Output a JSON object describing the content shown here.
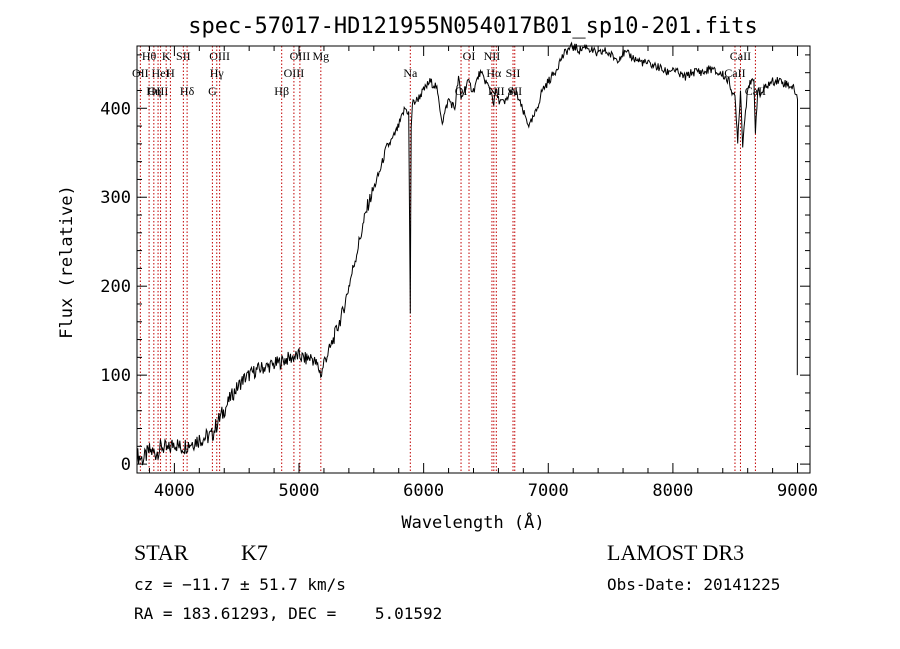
{
  "chart_data": {
    "type": "line",
    "title": "spec-57017-HD121955N054017B01_sp10-201.fits",
    "xlabel": "Wavelength (Å)",
    "ylabel": "Flux (relative)",
    "xlim": [
      3700,
      9100
    ],
    "ylim": [
      -10,
      470
    ],
    "xticks": [
      4000,
      5000,
      6000,
      7000,
      8000,
      9000
    ],
    "yticks": [
      0,
      100,
      200,
      300,
      400
    ],
    "grid": false,
    "series": [
      {
        "name": "flux",
        "x": [
          3700,
          3750,
          3800,
          3850,
          3900,
          3950,
          4000,
          4050,
          4100,
          4150,
          4200,
          4250,
          4300,
          4350,
          4400,
          4450,
          4500,
          4550,
          4600,
          4650,
          4700,
          4750,
          4800,
          4850,
          4900,
          4950,
          5000,
          5050,
          5100,
          5150,
          5180,
          5200,
          5250,
          5300,
          5350,
          5400,
          5450,
          5500,
          5550,
          5600,
          5650,
          5700,
          5750,
          5800,
          5850,
          5880,
          5893,
          5900,
          5910,
          5950,
          6000,
          6050,
          6100,
          6150,
          6200,
          6250,
          6280,
          6300,
          6350,
          6400,
          6450,
          6500,
          6550,
          6563,
          6580,
          6600,
          6650,
          6700,
          6750,
          6800,
          6850,
          6900,
          6950,
          7000,
          7050,
          7100,
          7150,
          7200,
          7250,
          7300,
          7350,
          7400,
          7450,
          7500,
          7550,
          7600,
          7650,
          7700,
          7750,
          7800,
          7850,
          7900,
          7950,
          8000,
          8050,
          8100,
          8150,
          8200,
          8250,
          8300,
          8350,
          8400,
          8450,
          8498,
          8520,
          8542,
          8560,
          8600,
          8650,
          8662,
          8680,
          8700,
          8750,
          8800,
          8850,
          8900,
          8950,
          8980,
          9000
        ],
        "values": [
          10,
          5,
          15,
          12,
          20,
          15,
          25,
          18,
          22,
          25,
          28,
          30,
          32,
          48,
          60,
          75,
          85,
          95,
          100,
          105,
          108,
          110,
          112,
          115,
          118,
          120,
          122,
          118,
          120,
          110,
          100,
          115,
          130,
          150,
          170,
          200,
          230,
          260,
          290,
          310,
          330,
          355,
          365,
          380,
          400,
          395,
          170,
          380,
          405,
          410,
          420,
          430,
          425,
          385,
          410,
          400,
          435,
          410,
          430,
          420,
          440,
          430,
          415,
          405,
          420,
          410,
          405,
          420,
          415,
          395,
          380,
          395,
          420,
          430,
          440,
          455,
          465,
          470,
          465,
          470,
          465,
          460,
          465,
          460,
          455,
          462,
          460,
          455,
          452,
          450,
          448,
          445,
          440,
          445,
          438,
          435,
          440,
          442,
          440,
          445,
          440,
          438,
          430,
          410,
          365,
          420,
          360,
          425,
          430,
          375,
          420,
          415,
          425,
          430,
          432,
          428,
          425,
          420,
          410
        ]
      }
    ],
    "lines": [
      {
        "label": "Hθ",
        "x": 3797
      },
      {
        "label": "OII",
        "x": 3727
      },
      {
        "label": "OIII",
        "x": 3869
      },
      {
        "label": "K",
        "x": 3934
      },
      {
        "label": "HeI",
        "x": 3889
      },
      {
        "label": "Hη",
        "x": 3835
      },
      {
        "label": "SII",
        "x": 4072
      },
      {
        "label": "H",
        "x": 3968
      },
      {
        "label": "Hδ",
        "x": 4102
      },
      {
        "label": "OIII",
        "x": 4363
      },
      {
        "label": "Hγ",
        "x": 4340
      },
      {
        "label": "G",
        "x": 4305
      },
      {
        "label": "OIII",
        "x": 5007
      },
      {
        "label": "OIII",
        "x": 4959
      },
      {
        "label": "Hβ",
        "x": 4861
      },
      {
        "label": "Mg",
        "x": 5175
      },
      {
        "label": "Na",
        "x": 5893
      },
      {
        "label": "OI",
        "x": 6300
      },
      {
        "label": "OI",
        "x": 6364
      },
      {
        "label": "Hα",
        "x": 6563
      },
      {
        "label": "NII",
        "x": 6583
      },
      {
        "label": "NII",
        "x": 6548
      },
      {
        "label": "SII",
        "x": 6717
      },
      {
        "label": "SII",
        "x": 6731
      },
      {
        "label": "CaII",
        "x": 8542
      },
      {
        "label": "CaII",
        "x": 8498
      },
      {
        "label": "CaII",
        "x": 8662
      }
    ]
  },
  "info": {
    "object_class": "STAR",
    "subclass": "K7",
    "survey": "LAMOST DR3",
    "cz": "cz = −11.7 ± 51.7 km/s",
    "obs_date": "Obs-Date: 20141225",
    "radec": "RA = 183.61293, DEC =    5.01592"
  }
}
